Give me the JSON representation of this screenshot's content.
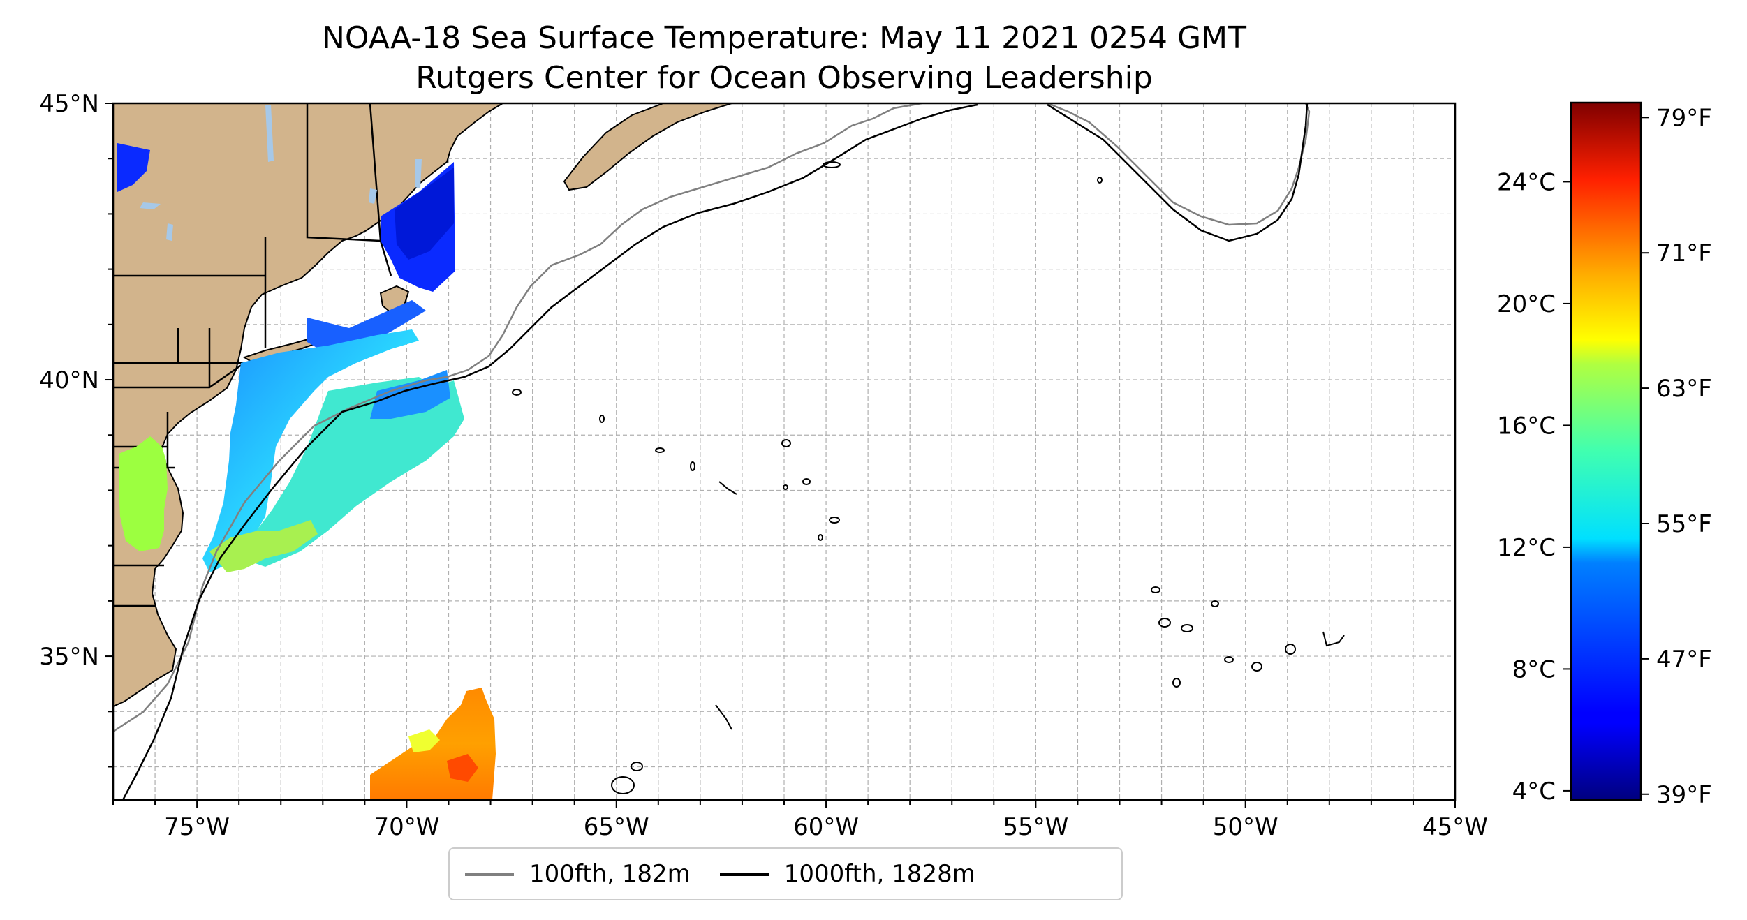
{
  "title": {
    "line1": "NOAA-18 Sea Surface Temperature: May 11 2021 0254 GMT",
    "line2": "Rutgers Center for Ocean Observing Leadership"
  },
  "map": {
    "lon_range": [
      -77,
      -45
    ],
    "lat_range": [
      32.4,
      45
    ],
    "x_tick_labels": [
      "75°W",
      "70°W",
      "65°W",
      "60°W",
      "55°W",
      "50°W",
      "45°W"
    ],
    "y_tick_labels": [
      "35°N",
      "40°N",
      "45°N"
    ],
    "gridlines": true,
    "colors": {
      "land": "#d2b48c",
      "lakes": "#a6c8e8",
      "isobath_100fth": "#808080",
      "isobath_1000fth": "#000000",
      "grid": "#b0b0b0"
    }
  },
  "colorbar": {
    "colormap": "jet",
    "celsius_labels": [
      "4°C",
      "8°C",
      "12°C",
      "16°C",
      "20°C",
      "24°C"
    ],
    "fahrenheit_labels": [
      "39°F",
      "47°F",
      "55°F",
      "63°F",
      "71°F",
      "79°F"
    ]
  },
  "legend": {
    "items": [
      {
        "label": "100fth, 182m",
        "color": "#808080"
      },
      {
        "label": "1000fth, 1828m",
        "color": "#000000"
      }
    ],
    "placement": "bottom-center"
  }
}
